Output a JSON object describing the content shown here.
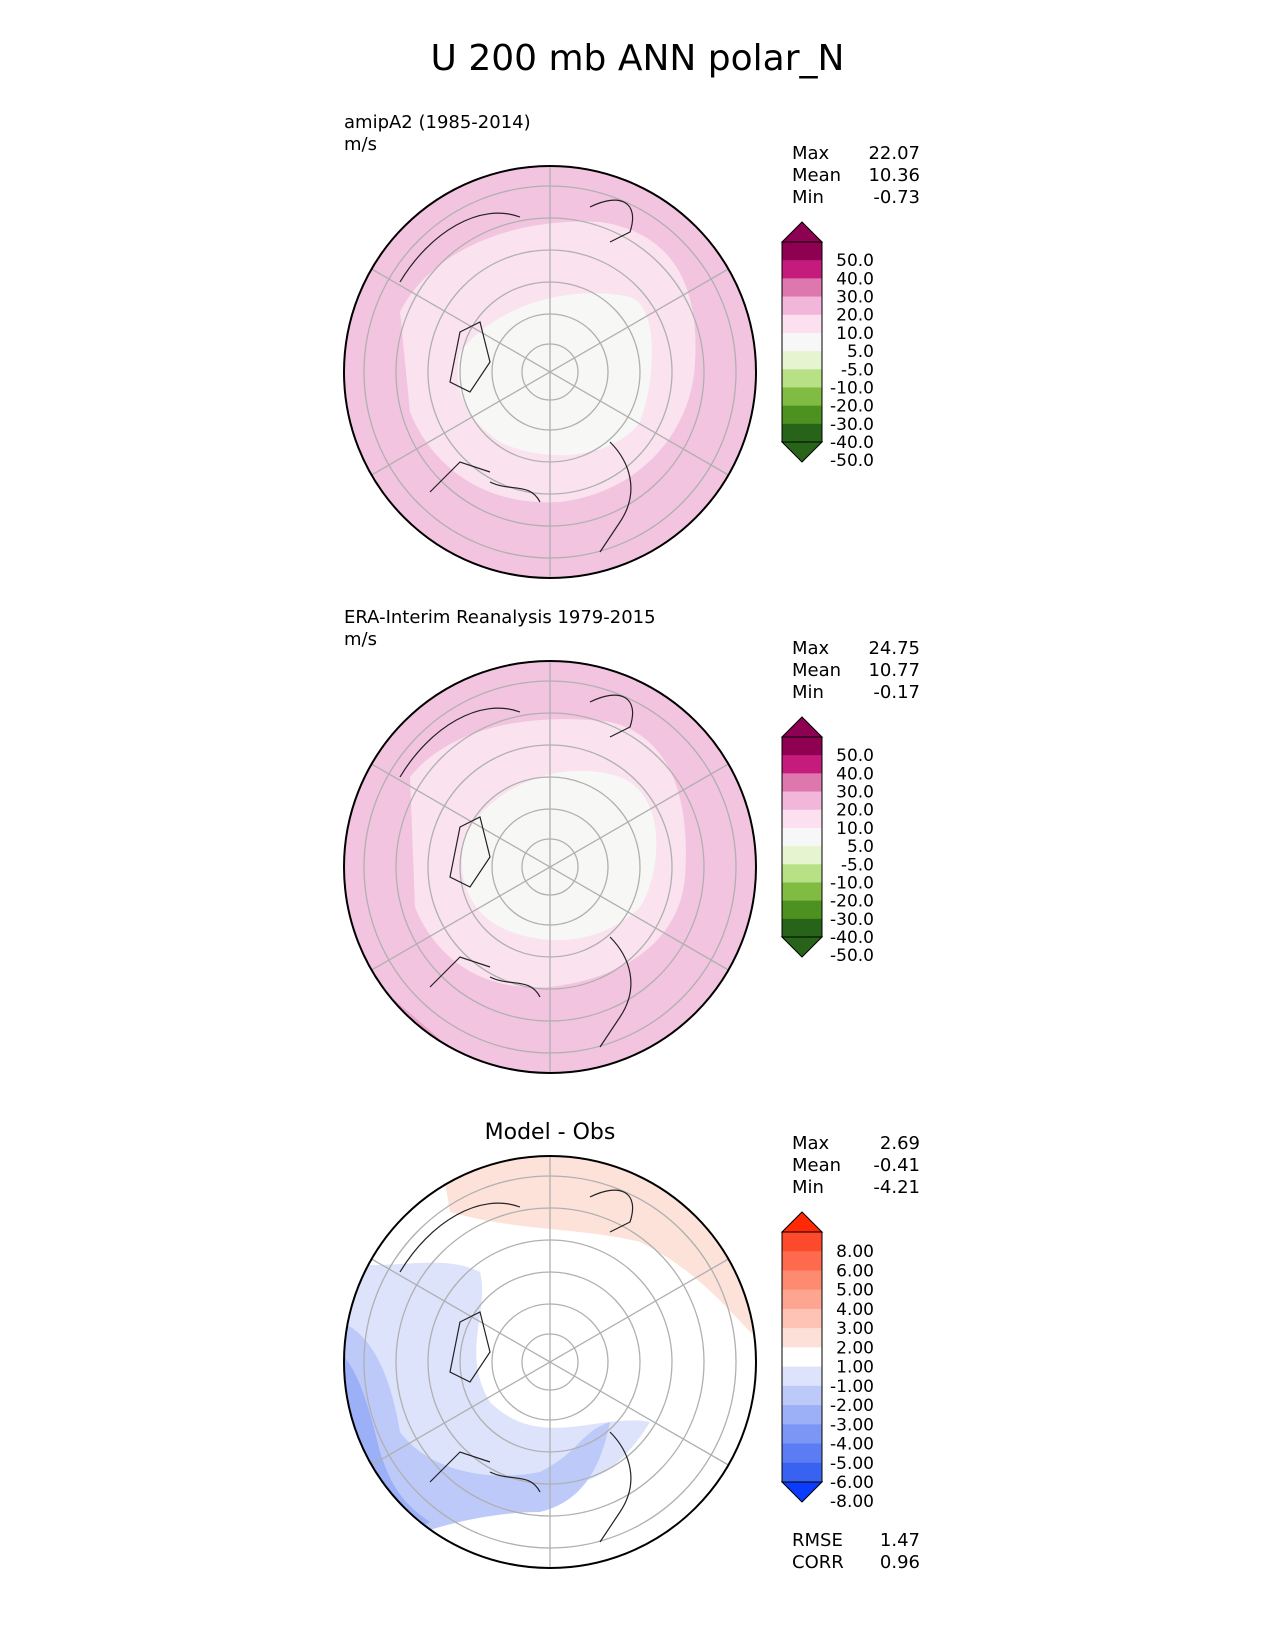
{
  "figure_title": "U 200 mb ANN polar_N",
  "chart_data": [
    {
      "type": "heatmap",
      "projection": "north polar stereographic",
      "title_left": "amipA2 (1985-2014)",
      "units": "m/s",
      "stats": [
        {
          "label": "Max",
          "value": "22.07"
        },
        {
          "label": "Mean",
          "value": "10.36"
        },
        {
          "label": "Min",
          "value": "-0.73"
        }
      ],
      "colorbar": {
        "levels": [
          "50.0",
          "40.0",
          "30.0",
          "20.0",
          "10.0",
          "5.0",
          "-5.0",
          "-10.0",
          "-20.0",
          "-30.0",
          "-40.0",
          "-50.0"
        ],
        "colors": [
          "#8e0152",
          "#c51b7d",
          "#de77ae",
          "#f1b6da",
          "#fde0ef",
          "#f7f7f7",
          "#e6f5d0",
          "#b8e186",
          "#7fbc41",
          "#4d9221",
          "#276419"
        ],
        "extend_top": "#8e0152",
        "extend_bottom": "#276419"
      },
      "field_colors": [
        "#f3c4df",
        "#fae2ef",
        "#f7f7f5",
        "#e9a3ca"
      ]
    },
    {
      "type": "heatmap",
      "projection": "north polar stereographic",
      "title_left": "ERA-Interim Reanalysis 1979-2015",
      "units": "m/s",
      "stats": [
        {
          "label": "Max",
          "value": "24.75"
        },
        {
          "label": "Mean",
          "value": "10.77"
        },
        {
          "label": "Min",
          "value": "-0.17"
        }
      ],
      "colorbar": {
        "levels": [
          "50.0",
          "40.0",
          "30.0",
          "20.0",
          "10.0",
          "5.0",
          "-5.0",
          "-10.0",
          "-20.0",
          "-30.0",
          "-40.0",
          "-50.0"
        ],
        "colors": [
          "#8e0152",
          "#c51b7d",
          "#de77ae",
          "#f1b6da",
          "#fde0ef",
          "#f7f7f7",
          "#e6f5d0",
          "#b8e186",
          "#7fbc41",
          "#4d9221",
          "#276419"
        ],
        "extend_top": "#8e0152",
        "extend_bottom": "#276419"
      },
      "field_colors": [
        "#f3c4df",
        "#fae2ef",
        "#f7f7f5",
        "#e9a3ca"
      ]
    },
    {
      "type": "heatmap",
      "projection": "north polar stereographic",
      "title_center": "Model - Obs",
      "stats": [
        {
          "label": "Max",
          "value": "2.69"
        },
        {
          "label": "Mean",
          "value": "-0.41"
        },
        {
          "label": "Min",
          "value": "-4.21"
        }
      ],
      "metrics": [
        {
          "label": "RMSE",
          "value": "1.47"
        },
        {
          "label": "CORR",
          "value": "0.96"
        }
      ],
      "colorbar": {
        "levels": [
          "8.00",
          "6.00",
          "5.00",
          "4.00",
          "3.00",
          "2.00",
          "1.00",
          "-1.00",
          "-2.00",
          "-3.00",
          "-4.00",
          "-5.00",
          "-6.00",
          "-8.00"
        ],
        "colors": [
          "#fe4a2c",
          "#fe6a4d",
          "#fe8a70",
          "#fea592",
          "#fec3b4",
          "#fde0d8",
          "#ffffff",
          "#dde3fb",
          "#bdc9f9",
          "#9cb0f7",
          "#7c96f5",
          "#5b7cf2",
          "#3a62f0"
        ],
        "extend_top": "#ff2a05",
        "extend_bottom": "#0a3cff"
      },
      "field_colors": [
        "#ffffff",
        "#fdc4b0",
        "#fde2da",
        "#dde3fb",
        "#bdc9f9",
        "#9cb0f7"
      ]
    }
  ]
}
